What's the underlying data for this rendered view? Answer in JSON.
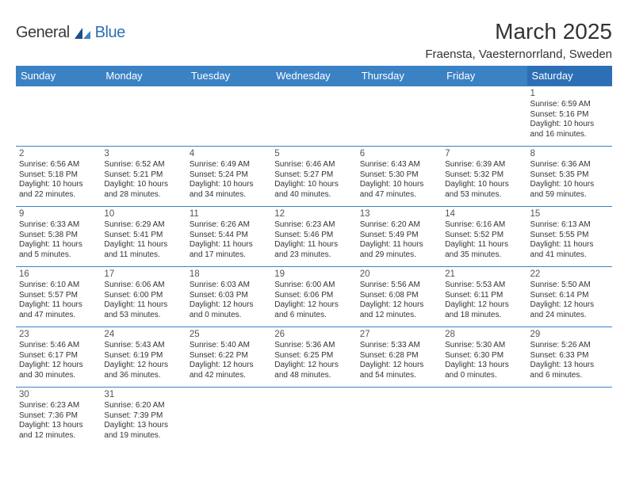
{
  "logo": {
    "general": "General",
    "blue": "Blue"
  },
  "title": "March 2025",
  "location": "Fraensta, Vaesternorrland, Sweden",
  "day_headers": [
    "Sunday",
    "Monday",
    "Tuesday",
    "Wednesday",
    "Thursday",
    "Friday",
    "Saturday"
  ],
  "colors": {
    "header_bg": "#3b82c4",
    "saturday_bg": "#2d6fb5",
    "border": "#3b82c4"
  },
  "weeks": [
    [
      null,
      null,
      null,
      null,
      null,
      null,
      {
        "n": "1",
        "sr": "Sunrise: 6:59 AM",
        "ss": "Sunset: 5:16 PM",
        "d1": "Daylight: 10 hours",
        "d2": "and 16 minutes."
      }
    ],
    [
      {
        "n": "2",
        "sr": "Sunrise: 6:56 AM",
        "ss": "Sunset: 5:18 PM",
        "d1": "Daylight: 10 hours",
        "d2": "and 22 minutes."
      },
      {
        "n": "3",
        "sr": "Sunrise: 6:52 AM",
        "ss": "Sunset: 5:21 PM",
        "d1": "Daylight: 10 hours",
        "d2": "and 28 minutes."
      },
      {
        "n": "4",
        "sr": "Sunrise: 6:49 AM",
        "ss": "Sunset: 5:24 PM",
        "d1": "Daylight: 10 hours",
        "d2": "and 34 minutes."
      },
      {
        "n": "5",
        "sr": "Sunrise: 6:46 AM",
        "ss": "Sunset: 5:27 PM",
        "d1": "Daylight: 10 hours",
        "d2": "and 40 minutes."
      },
      {
        "n": "6",
        "sr": "Sunrise: 6:43 AM",
        "ss": "Sunset: 5:30 PM",
        "d1": "Daylight: 10 hours",
        "d2": "and 47 minutes."
      },
      {
        "n": "7",
        "sr": "Sunrise: 6:39 AM",
        "ss": "Sunset: 5:32 PM",
        "d1": "Daylight: 10 hours",
        "d2": "and 53 minutes."
      },
      {
        "n": "8",
        "sr": "Sunrise: 6:36 AM",
        "ss": "Sunset: 5:35 PM",
        "d1": "Daylight: 10 hours",
        "d2": "and 59 minutes."
      }
    ],
    [
      {
        "n": "9",
        "sr": "Sunrise: 6:33 AM",
        "ss": "Sunset: 5:38 PM",
        "d1": "Daylight: 11 hours",
        "d2": "and 5 minutes."
      },
      {
        "n": "10",
        "sr": "Sunrise: 6:29 AM",
        "ss": "Sunset: 5:41 PM",
        "d1": "Daylight: 11 hours",
        "d2": "and 11 minutes."
      },
      {
        "n": "11",
        "sr": "Sunrise: 6:26 AM",
        "ss": "Sunset: 5:44 PM",
        "d1": "Daylight: 11 hours",
        "d2": "and 17 minutes."
      },
      {
        "n": "12",
        "sr": "Sunrise: 6:23 AM",
        "ss": "Sunset: 5:46 PM",
        "d1": "Daylight: 11 hours",
        "d2": "and 23 minutes."
      },
      {
        "n": "13",
        "sr": "Sunrise: 6:20 AM",
        "ss": "Sunset: 5:49 PM",
        "d1": "Daylight: 11 hours",
        "d2": "and 29 minutes."
      },
      {
        "n": "14",
        "sr": "Sunrise: 6:16 AM",
        "ss": "Sunset: 5:52 PM",
        "d1": "Daylight: 11 hours",
        "d2": "and 35 minutes."
      },
      {
        "n": "15",
        "sr": "Sunrise: 6:13 AM",
        "ss": "Sunset: 5:55 PM",
        "d1": "Daylight: 11 hours",
        "d2": "and 41 minutes."
      }
    ],
    [
      {
        "n": "16",
        "sr": "Sunrise: 6:10 AM",
        "ss": "Sunset: 5:57 PM",
        "d1": "Daylight: 11 hours",
        "d2": "and 47 minutes."
      },
      {
        "n": "17",
        "sr": "Sunrise: 6:06 AM",
        "ss": "Sunset: 6:00 PM",
        "d1": "Daylight: 11 hours",
        "d2": "and 53 minutes."
      },
      {
        "n": "18",
        "sr": "Sunrise: 6:03 AM",
        "ss": "Sunset: 6:03 PM",
        "d1": "Daylight: 12 hours",
        "d2": "and 0 minutes."
      },
      {
        "n": "19",
        "sr": "Sunrise: 6:00 AM",
        "ss": "Sunset: 6:06 PM",
        "d1": "Daylight: 12 hours",
        "d2": "and 6 minutes."
      },
      {
        "n": "20",
        "sr": "Sunrise: 5:56 AM",
        "ss": "Sunset: 6:08 PM",
        "d1": "Daylight: 12 hours",
        "d2": "and 12 minutes."
      },
      {
        "n": "21",
        "sr": "Sunrise: 5:53 AM",
        "ss": "Sunset: 6:11 PM",
        "d1": "Daylight: 12 hours",
        "d2": "and 18 minutes."
      },
      {
        "n": "22",
        "sr": "Sunrise: 5:50 AM",
        "ss": "Sunset: 6:14 PM",
        "d1": "Daylight: 12 hours",
        "d2": "and 24 minutes."
      }
    ],
    [
      {
        "n": "23",
        "sr": "Sunrise: 5:46 AM",
        "ss": "Sunset: 6:17 PM",
        "d1": "Daylight: 12 hours",
        "d2": "and 30 minutes."
      },
      {
        "n": "24",
        "sr": "Sunrise: 5:43 AM",
        "ss": "Sunset: 6:19 PM",
        "d1": "Daylight: 12 hours",
        "d2": "and 36 minutes."
      },
      {
        "n": "25",
        "sr": "Sunrise: 5:40 AM",
        "ss": "Sunset: 6:22 PM",
        "d1": "Daylight: 12 hours",
        "d2": "and 42 minutes."
      },
      {
        "n": "26",
        "sr": "Sunrise: 5:36 AM",
        "ss": "Sunset: 6:25 PM",
        "d1": "Daylight: 12 hours",
        "d2": "and 48 minutes."
      },
      {
        "n": "27",
        "sr": "Sunrise: 5:33 AM",
        "ss": "Sunset: 6:28 PM",
        "d1": "Daylight: 12 hours",
        "d2": "and 54 minutes."
      },
      {
        "n": "28",
        "sr": "Sunrise: 5:30 AM",
        "ss": "Sunset: 6:30 PM",
        "d1": "Daylight: 13 hours",
        "d2": "and 0 minutes."
      },
      {
        "n": "29",
        "sr": "Sunrise: 5:26 AM",
        "ss": "Sunset: 6:33 PM",
        "d1": "Daylight: 13 hours",
        "d2": "and 6 minutes."
      }
    ],
    [
      {
        "n": "30",
        "sr": "Sunrise: 6:23 AM",
        "ss": "Sunset: 7:36 PM",
        "d1": "Daylight: 13 hours",
        "d2": "and 12 minutes."
      },
      {
        "n": "31",
        "sr": "Sunrise: 6:20 AM",
        "ss": "Sunset: 7:39 PM",
        "d1": "Daylight: 13 hours",
        "d2": "and 19 minutes."
      },
      null,
      null,
      null,
      null,
      null
    ]
  ]
}
